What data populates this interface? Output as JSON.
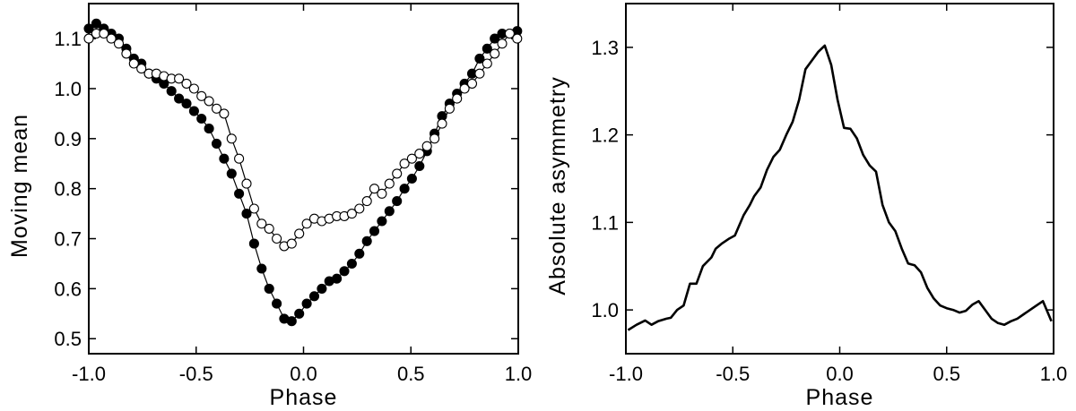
{
  "chart_data": [
    {
      "type": "line",
      "title": "",
      "xlabel": "Phase",
      "ylabel": "Moving mean",
      "xlim": [
        -1.0,
        1.0
      ],
      "ylim": [
        0.47,
        1.17
      ],
      "grid": false,
      "xticks": [
        -1.0,
        -0.5,
        0.0,
        0.5,
        1.0
      ],
      "xtick_labels": [
        "-1.0",
        "-0.5",
        "0.0",
        "0.5",
        "1.0"
      ],
      "yticks": [
        0.5,
        0.6,
        0.7,
        0.8,
        0.9,
        1.0,
        1.1
      ],
      "ytick_labels": [
        "0.5",
        "0.6",
        "0.7",
        "0.8",
        "0.9",
        "1.0",
        "1.1"
      ],
      "series": [
        {
          "marker": "filled-circle",
          "color": "#000000",
          "x": [
            -1.0,
            -0.965,
            -0.93,
            -0.895,
            -0.86,
            -0.825,
            -0.79,
            -0.755,
            -0.72,
            -0.685,
            -0.65,
            -0.615,
            -0.58,
            -0.545,
            -0.51,
            -0.475,
            -0.44,
            -0.405,
            -0.37,
            -0.335,
            -0.3,
            -0.265,
            -0.23,
            -0.195,
            -0.16,
            -0.125,
            -0.09,
            -0.055,
            -0.02,
            0.015,
            0.05,
            0.085,
            0.12,
            0.155,
            0.19,
            0.225,
            0.26,
            0.295,
            0.33,
            0.365,
            0.4,
            0.435,
            0.47,
            0.505,
            0.54,
            0.575,
            0.61,
            0.645,
            0.68,
            0.715,
            0.75,
            0.785,
            0.82,
            0.855,
            0.89,
            0.925,
            0.96,
            0.995
          ],
          "y": [
            1.12,
            1.13,
            1.12,
            1.11,
            1.1,
            1.08,
            1.06,
            1.05,
            1.03,
            1.02,
            1.01,
            0.995,
            0.98,
            0.97,
            0.955,
            0.94,
            0.92,
            0.89,
            0.86,
            0.83,
            0.79,
            0.75,
            0.69,
            0.64,
            0.6,
            0.57,
            0.54,
            0.535,
            0.55,
            0.57,
            0.585,
            0.6,
            0.615,
            0.62,
            0.635,
            0.65,
            0.67,
            0.695,
            0.715,
            0.735,
            0.755,
            0.775,
            0.8,
            0.82,
            0.845,
            0.875,
            0.91,
            0.945,
            0.97,
            0.99,
            1.01,
            1.03,
            1.06,
            1.08,
            1.1,
            1.11,
            1.11,
            1.115
          ]
        },
        {
          "marker": "open-circle",
          "color": "#000000",
          "x": [
            -1.0,
            -0.965,
            -0.93,
            -0.895,
            -0.86,
            -0.825,
            -0.79,
            -0.755,
            -0.72,
            -0.685,
            -0.65,
            -0.615,
            -0.58,
            -0.545,
            -0.51,
            -0.475,
            -0.44,
            -0.405,
            -0.37,
            -0.335,
            -0.3,
            -0.265,
            -0.23,
            -0.195,
            -0.16,
            -0.125,
            -0.09,
            -0.055,
            -0.02,
            0.015,
            0.05,
            0.085,
            0.12,
            0.155,
            0.19,
            0.225,
            0.26,
            0.295,
            0.33,
            0.365,
            0.4,
            0.435,
            0.47,
            0.505,
            0.54,
            0.575,
            0.61,
            0.645,
            0.68,
            0.715,
            0.75,
            0.785,
            0.82,
            0.855,
            0.89,
            0.925,
            0.96,
            0.995
          ],
          "y": [
            1.1,
            1.11,
            1.11,
            1.1,
            1.09,
            1.07,
            1.05,
            1.04,
            1.03,
            1.03,
            1.025,
            1.02,
            1.02,
            1.01,
            1.0,
            0.985,
            0.975,
            0.96,
            0.95,
            0.9,
            0.86,
            0.81,
            0.76,
            0.73,
            0.72,
            0.7,
            0.685,
            0.69,
            0.71,
            0.73,
            0.74,
            0.735,
            0.74,
            0.745,
            0.745,
            0.75,
            0.76,
            0.775,
            0.8,
            0.79,
            0.81,
            0.83,
            0.85,
            0.86,
            0.87,
            0.885,
            0.9,
            0.93,
            0.96,
            0.98,
            1.0,
            1.01,
            1.03,
            1.05,
            1.07,
            1.09,
            1.11,
            1.1
          ]
        }
      ]
    },
    {
      "type": "line",
      "title": "",
      "xlabel": "Phase",
      "ylabel": "Absolute asymmetry",
      "xlim": [
        -1.0,
        1.0
      ],
      "ylim": [
        0.95,
        1.35
      ],
      "grid": false,
      "xticks": [
        -1.0,
        -0.5,
        0.0,
        0.5,
        1.0
      ],
      "xtick_labels": [
        "-1.0",
        "-0.5",
        "0.0",
        "0.5",
        "1.0"
      ],
      "yticks": [
        1.0,
        1.1,
        1.2,
        1.3
      ],
      "ytick_labels": [
        "1.0",
        "1.1",
        "1.2",
        "1.3"
      ],
      "series": [
        {
          "color": "#000000",
          "x": [
            -0.99,
            -0.95,
            -0.91,
            -0.88,
            -0.85,
            -0.81,
            -0.79,
            -0.76,
            -0.73,
            -0.7,
            -0.67,
            -0.64,
            -0.6,
            -0.58,
            -0.55,
            -0.52,
            -0.49,
            -0.45,
            -0.42,
            -0.4,
            -0.37,
            -0.34,
            -0.31,
            -0.28,
            -0.25,
            -0.22,
            -0.19,
            -0.16,
            -0.13,
            -0.1,
            -0.07,
            -0.04,
            -0.01,
            0.02,
            0.05,
            0.08,
            0.11,
            0.14,
            0.17,
            0.2,
            0.23,
            0.26,
            0.29,
            0.32,
            0.35,
            0.38,
            0.41,
            0.44,
            0.47,
            0.5,
            0.53,
            0.56,
            0.59,
            0.62,
            0.65,
            0.68,
            0.71,
            0.74,
            0.77,
            0.8,
            0.83,
            0.86,
            0.89,
            0.92,
            0.95,
            0.99
          ],
          "y": [
            0.977,
            0.983,
            0.988,
            0.983,
            0.987,
            0.99,
            0.991,
            1.0,
            1.005,
            1.03,
            1.03,
            1.05,
            1.06,
            1.07,
            1.076,
            1.081,
            1.085,
            1.108,
            1.12,
            1.13,
            1.14,
            1.16,
            1.175,
            1.183,
            1.2,
            1.215,
            1.24,
            1.275,
            1.285,
            1.295,
            1.302,
            1.28,
            1.24,
            1.208,
            1.207,
            1.196,
            1.177,
            1.165,
            1.158,
            1.12,
            1.1,
            1.09,
            1.07,
            1.053,
            1.051,
            1.043,
            1.025,
            1.013,
            1.005,
            1.002,
            1.0,
            0.997,
            0.999,
            1.006,
            1.01,
            1.0,
            0.99,
            0.985,
            0.983,
            0.987,
            0.99,
            0.995,
            1.0,
            1.005,
            1.01,
            0.987
          ]
        }
      ]
    }
  ]
}
